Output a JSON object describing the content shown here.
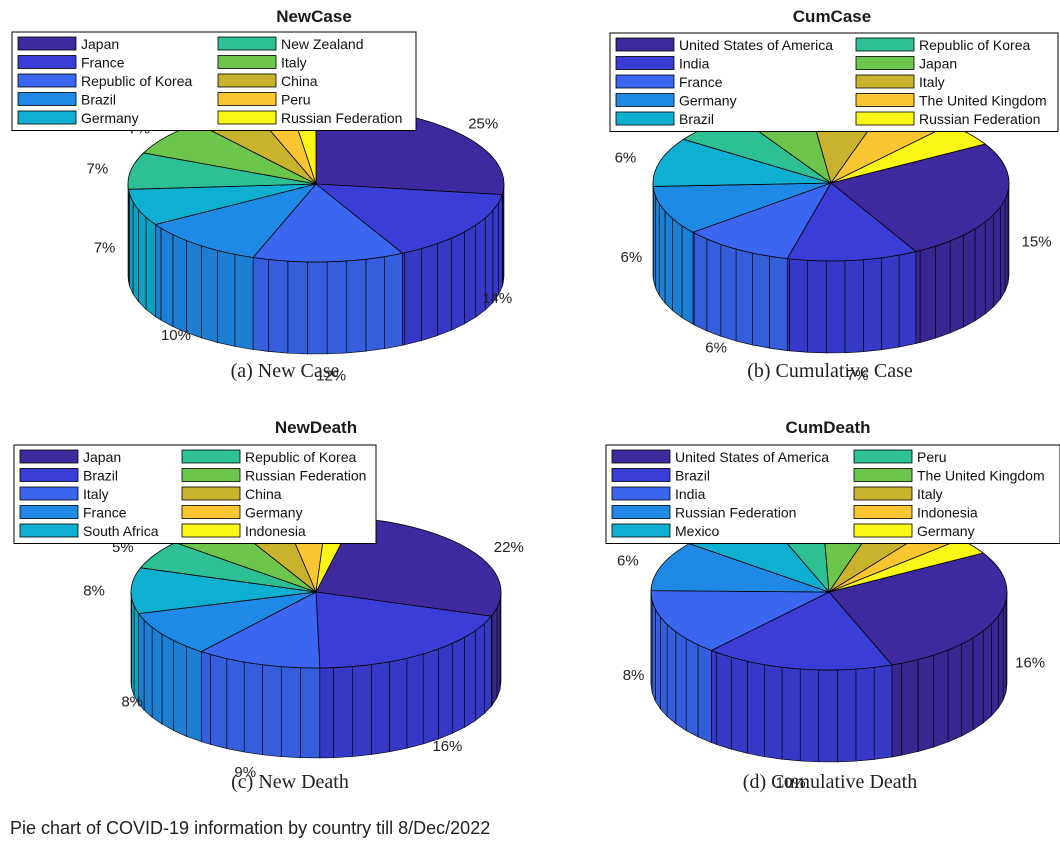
{
  "caption": "Pie chart of COVID-19 information by country till 8/Dec/2022",
  "colors": {
    "palette": [
      "#3e2a9e",
      "#3b3ed6",
      "#3a66f0",
      "#1e8ae6",
      "#0fafd2",
      "#2dc094",
      "#6bc64b",
      "#c9b32d",
      "#f9c632",
      "#f9f514"
    ]
  },
  "chart_data": [
    {
      "type": "pie",
      "title": "NewCase",
      "subtitle": "(a)  New Case",
      "categories": [
        "Japan",
        "France",
        "Republic of Korea",
        "Brazil",
        "Germany",
        "New Zealand",
        "Italy",
        "China",
        "Peru",
        "Russian Federation"
      ],
      "values": [
        25,
        14,
        12,
        10,
        7,
        7,
        7,
        5,
        3,
        2
      ],
      "labels": [
        "25%",
        "14%",
        "12%",
        "10%",
        "7%",
        "7%",
        "7%",
        "",
        "",
        ""
      ],
      "legend_position": "top-left"
    },
    {
      "type": "pie",
      "title": "CumCase",
      "subtitle": "(b)  Cumulative Case",
      "categories": [
        "United States of America",
        "India",
        "France",
        "Germany",
        "Brazil",
        "Republic of Korea",
        "Japan",
        "Italy",
        "The United Kingdom",
        "Russian Federation"
      ],
      "values": [
        15,
        7,
        6,
        6,
        6,
        4,
        4,
        4,
        4,
        3
      ],
      "labels": [
        "15%",
        "7%",
        "6%",
        "6%",
        "6%",
        "4%",
        "4%",
        "4%",
        "4%",
        "3%"
      ],
      "legend_position": "top"
    },
    {
      "type": "pie",
      "title": "NewDeath",
      "subtitle": "(c)  New Death",
      "categories": [
        "Japan",
        "Brazil",
        "Italy",
        "France",
        "South Africa",
        "Republic of Korea",
        "Russian Federation",
        "China",
        "Germany",
        "Indonesia"
      ],
      "values": [
        22,
        16,
        9,
        8,
        8,
        5,
        5,
        4,
        3,
        2
      ],
      "labels": [
        "22%",
        "16%",
        "9%",
        "8%",
        "8%",
        "5%",
        "5%",
        "4%",
        "3%",
        "2%"
      ],
      "legend_position": "top-left"
    },
    {
      "type": "pie",
      "title": "CumDeath",
      "subtitle": "(d)  Cumulative Death",
      "categories": [
        "United States of America",
        "Brazil",
        "India",
        "Russian Federation",
        "Mexico",
        "Peru",
        "The United Kingdom",
        "Italy",
        "Indonesia",
        "Germany"
      ],
      "values": [
        16,
        10,
        8,
        6,
        5,
        3,
        3,
        3,
        2,
        2
      ],
      "labels": [
        "16%",
        "10%",
        "8%",
        "6%",
        "5%",
        "3%",
        "3%",
        "3%",
        "2%",
        "2%"
      ],
      "legend_position": "top"
    }
  ]
}
